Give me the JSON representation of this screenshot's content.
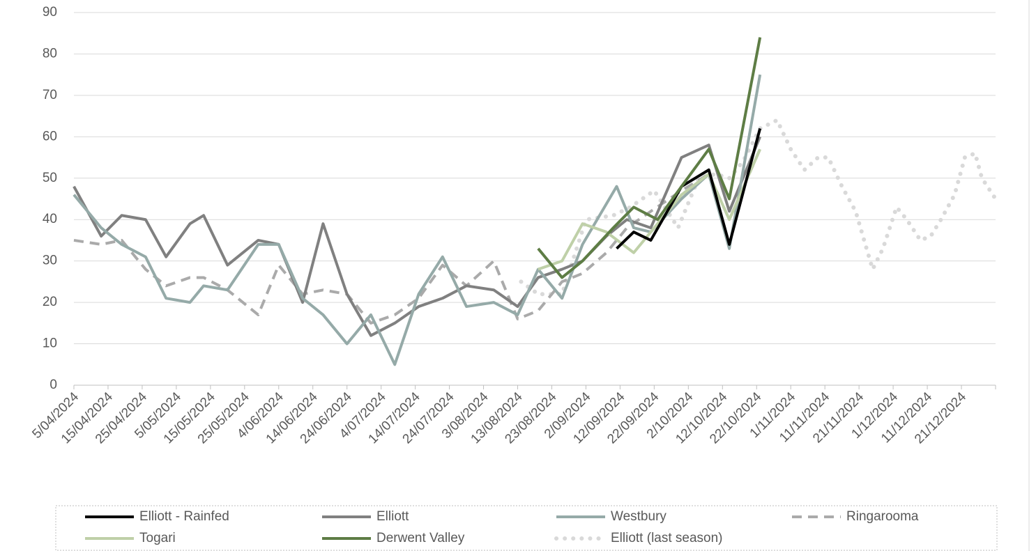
{
  "chart_data": {
    "type": "line",
    "ylim": [
      0,
      90
    ],
    "yticks": [
      0,
      10,
      20,
      30,
      40,
      50,
      60,
      70,
      80,
      90
    ],
    "xlim": [
      "5/04/2024",
      "31/12/2024"
    ],
    "xticks": [
      "5/04/2024",
      "15/04/2024",
      "25/04/2024",
      "5/05/2024",
      "15/05/2024",
      "25/05/2024",
      "4/06/2024",
      "14/06/2024",
      "24/06/2024",
      "4/07/2024",
      "14/07/2024",
      "24/07/2024",
      "3/08/2024",
      "13/08/2024",
      "23/08/2024",
      "2/09/2024",
      "12/09/2024",
      "22/09/2024",
      "2/10/2024",
      "12/10/2024",
      "22/10/2024",
      "1/11/2024",
      "11/11/2024",
      "21/11/2024",
      "1/12/2024",
      "11/12/2024",
      "21/12/2024"
    ],
    "grid": true,
    "legend": "bottom",
    "series": [
      {
        "name": "Elliott - Rainfed",
        "color": "#000000",
        "style": "solid",
        "x": [
          "11/09/2024",
          "16/09/2024",
          "21/09/2024",
          "30/09/2024",
          "8/10/2024",
          "14/10/2024",
          "23/10/2024"
        ],
        "values": [
          33,
          37,
          35,
          48,
          52,
          34,
          62
        ]
      },
      {
        "name": "Elliott",
        "color": "#808080",
        "style": "solid",
        "x": [
          "5/04/2024",
          "13/04/2024",
          "19/04/2024",
          "26/04/2024",
          "2/05/2024",
          "9/05/2024",
          "13/05/2024",
          "20/05/2024",
          "29/05/2024",
          "4/06/2024",
          "11/06/2024",
          "17/06/2024",
          "24/06/2024",
          "1/07/2024",
          "8/07/2024",
          "15/07/2024",
          "22/07/2024",
          "29/07/2024",
          "6/08/2024",
          "13/08/2024",
          "19/08/2024",
          "26/08/2024",
          "1/09/2024",
          "8/09/2024",
          "14/09/2024",
          "21/09/2024",
          "30/09/2024",
          "8/10/2024",
          "14/10/2024",
          "23/10/2024"
        ],
        "values": [
          48,
          36,
          41,
          40,
          31,
          39,
          41,
          29,
          35,
          34,
          20,
          39,
          22,
          12,
          15,
          19,
          21,
          24,
          23,
          19,
          26,
          28,
          30,
          36,
          40,
          38,
          55,
          58,
          42,
          60
        ]
      },
      {
        "name": "Westbury",
        "color": "#95aaa8",
        "style": "solid",
        "x": [
          "5/04/2024",
          "13/04/2024",
          "19/04/2024",
          "26/04/2024",
          "2/05/2024",
          "9/05/2024",
          "13/05/2024",
          "20/05/2024",
          "29/05/2024",
          "4/06/2024",
          "11/06/2024",
          "17/06/2024",
          "24/06/2024",
          "1/07/2024",
          "8/07/2024",
          "15/07/2024",
          "22/07/2024",
          "29/07/2024",
          "6/08/2024",
          "13/08/2024",
          "19/08/2024",
          "26/08/2024",
          "1/09/2024",
          "11/09/2024",
          "16/09/2024",
          "21/09/2024",
          "30/09/2024",
          "8/10/2024",
          "14/10/2024",
          "23/10/2024"
        ],
        "values": [
          46,
          38,
          34,
          31,
          21,
          20,
          24,
          23,
          34,
          34,
          21,
          17,
          10,
          17,
          5,
          22,
          31,
          19,
          20,
          17,
          28,
          21,
          34,
          48,
          38,
          37,
          45,
          51,
          33,
          75
        ]
      },
      {
        "name": "Ringarooma",
        "color": "#aaaaaa",
        "style": "dashed",
        "x": [
          "5/04/2024",
          "13/04/2024",
          "19/04/2024",
          "26/04/2024",
          "2/05/2024",
          "9/05/2024",
          "13/05/2024",
          "20/05/2024",
          "29/05/2024",
          "4/06/2024",
          "11/06/2024",
          "17/06/2024",
          "24/06/2024",
          "1/07/2024",
          "8/07/2024",
          "15/07/2024",
          "22/07/2024",
          "29/07/2024",
          "6/08/2024",
          "13/08/2024",
          "19/08/2024",
          "26/08/2024",
          "1/09/2024",
          "8/09/2024",
          "14/09/2024",
          "21/09/2024",
          "30/09/2024",
          "8/10/2024",
          "14/10/2024",
          "23/10/2024"
        ],
        "values": [
          35,
          34,
          35,
          28,
          24,
          26,
          26,
          23,
          17,
          29,
          22,
          23,
          22,
          15,
          17,
          21,
          29,
          24,
          30,
          16,
          18,
          25,
          27,
          32,
          38,
          42,
          47,
          51,
          40,
          57
        ]
      },
      {
        "name": "Togari",
        "color": "#bfd0a8",
        "style": "solid",
        "x": [
          "19/08/2024",
          "26/08/2024",
          "1/09/2024",
          "8/09/2024",
          "16/09/2024",
          "21/09/2024",
          "30/09/2024",
          "8/10/2024",
          "14/10/2024",
          "23/10/2024"
        ],
        "values": [
          28,
          30,
          39,
          37,
          32,
          37,
          46,
          51,
          40,
          57
        ]
      },
      {
        "name": "Derwent Valley",
        "color": "#5e7d45",
        "style": "solid",
        "x": [
          "19/08/2024",
          "26/08/2024",
          "1/09/2024",
          "10/09/2024",
          "16/09/2024",
          "23/09/2024",
          "30/09/2024",
          "8/10/2024",
          "14/10/2024",
          "23/10/2024"
        ],
        "values": [
          33,
          26,
          30,
          38,
          43,
          40,
          48,
          57,
          45,
          84
        ]
      },
      {
        "name": "Elliott (last season)",
        "color": "#d9d9d9",
        "style": "dotted",
        "x": [
          "14/08/2024",
          "19/08/2024",
          "26/08/2024",
          "2/09/2024",
          "10/09/2024",
          "15/09/2024",
          "22/09/2024",
          "29/09/2024",
          "5/10/2024",
          "10/10/2024",
          "14/10/2024",
          "18/10/2024",
          "23/10/2024",
          "28/10/2024",
          "1/11/2024",
          "5/11/2024",
          "9/11/2024",
          "12/11/2024",
          "16/11/2024",
          "20/11/2024",
          "25/11/2024",
          "28/11/2024",
          "2/12/2024",
          "5/12/2024",
          "9/12/2024",
          "12/12/2024",
          "15/12/2024",
          "19/12/2024",
          "22/12/2024",
          "25/12/2024",
          "27/12/2024",
          "31/12/2024"
        ],
        "values": [
          25,
          22,
          22,
          40,
          41,
          43,
          47,
          38,
          50,
          51,
          50,
          54,
          62,
          64,
          57,
          52,
          55,
          55,
          48,
          42,
          28,
          33,
          43,
          40,
          35,
          36,
          40,
          46,
          55,
          56,
          50,
          45
        ]
      }
    ]
  }
}
